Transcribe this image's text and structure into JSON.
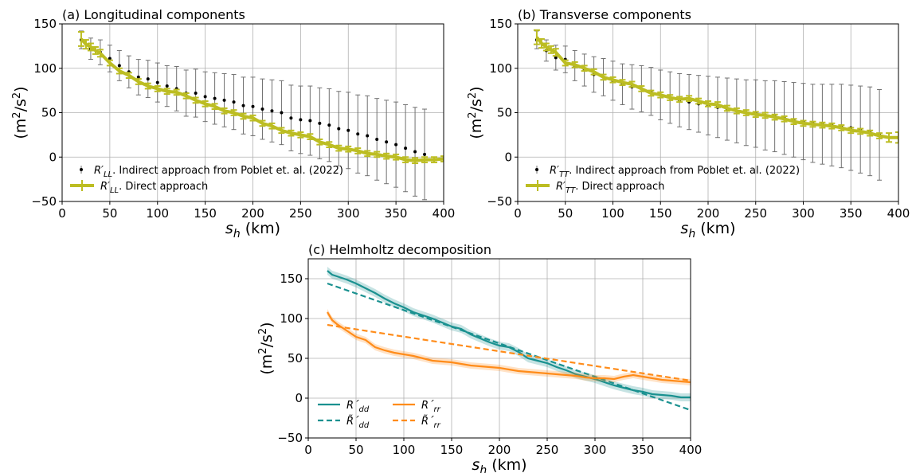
{
  "chart_data": [
    {
      "type": "line",
      "title": "(a) Longitudinal components",
      "xlabel": "s_h (km)",
      "ylabel": "(m²/s²)",
      "xlim": [
        0,
        400
      ],
      "ylim": [
        -50,
        150
      ],
      "xticks": [
        "0",
        "50",
        "100",
        "150",
        "200",
        "250",
        "300",
        "350",
        "400"
      ],
      "yticks": [
        "−50",
        "0",
        "50",
        "100",
        "150"
      ],
      "grid": true,
      "legend_position": "lower-left",
      "legend": [
        "R′LL. Indirect approach from Poblet et. al. (2022)",
        "R′LL. Direct approach"
      ],
      "direct": {
        "x": [
          20,
          25,
          30,
          35,
          40,
          50,
          60,
          70,
          80,
          90,
          100,
          110,
          120,
          130,
          140,
          150,
          160,
          170,
          180,
          190,
          200,
          210,
          220,
          230,
          240,
          250,
          260,
          270,
          280,
          290,
          300,
          310,
          320,
          330,
          340,
          350,
          360,
          370,
          380,
          390,
          400
        ],
        "y": [
          133,
          127,
          124,
          120,
          117,
          106,
          97,
          92,
          85,
          80,
          77,
          74,
          73,
          69,
          64,
          60,
          57,
          52,
          50,
          46,
          44,
          38,
          35,
          30,
          27,
          25,
          23,
          17,
          14,
          10,
          9,
          7,
          4,
          3,
          1,
          0,
          -3,
          -4,
          -3,
          -3,
          -2
        ],
        "err": [
          8,
          5,
          4,
          4,
          4,
          3,
          3,
          3,
          3,
          3,
          3,
          3,
          3,
          3,
          3,
          3,
          3,
          3,
          3,
          3,
          3,
          3,
          3,
          3,
          3,
          3,
          3,
          3,
          3,
          3,
          3,
          3,
          3,
          3,
          3,
          3,
          3,
          3,
          3,
          3,
          3
        ]
      },
      "indirect": {
        "x": [
          20,
          30,
          40,
          50,
          60,
          70,
          80,
          90,
          100,
          110,
          120,
          130,
          140,
          150,
          160,
          170,
          180,
          190,
          200,
          210,
          220,
          230,
          240,
          250,
          260,
          270,
          280,
          290,
          300,
          310,
          320,
          330,
          340,
          350,
          360,
          370,
          380
        ],
        "y": [
          132,
          122,
          118,
          111,
          103,
          96,
          90,
          88,
          84,
          80,
          77,
          72,
          72,
          68,
          66,
          64,
          62,
          58,
          57,
          54,
          52,
          50,
          44,
          42,
          41,
          38,
          36,
          32,
          30,
          26,
          24,
          20,
          17,
          14,
          10,
          6,
          3
        ],
        "err": [
          10,
          12,
          14,
          15,
          17,
          18,
          20,
          21,
          22,
          23,
          25,
          26,
          27,
          28,
          29,
          30,
          31,
          32,
          33,
          34,
          35,
          36,
          37,
          38,
          39,
          40,
          41,
          42,
          43,
          44,
          45,
          46,
          47,
          48,
          49,
          50,
          51
        ]
      }
    },
    {
      "type": "line",
      "title": "(b) Transverse components",
      "xlabel": "s_h (km)",
      "ylabel": "(m²/s²)",
      "xlim": [
        0,
        400
      ],
      "ylim": [
        -50,
        150
      ],
      "xticks": [
        "0",
        "50",
        "100",
        "150",
        "200",
        "250",
        "300",
        "350",
        "400"
      ],
      "yticks": [
        "−50",
        "0",
        "50",
        "100",
        "150"
      ],
      "grid": true,
      "legend_position": "lower-left",
      "legend": [
        "R′TT. Indirect approach from Poblet et. al. (2022)",
        "R′TT. Direct approach"
      ],
      "direct": {
        "x": [
          20,
          25,
          30,
          35,
          40,
          50,
          60,
          70,
          80,
          90,
          100,
          110,
          120,
          130,
          140,
          150,
          160,
          170,
          180,
          190,
          200,
          210,
          220,
          230,
          240,
          250,
          260,
          270,
          280,
          290,
          300,
          310,
          320,
          330,
          340,
          350,
          360,
          370,
          380,
          390,
          400
        ],
        "y": [
          135,
          128,
          124,
          121,
          118,
          106,
          104,
          100,
          96,
          90,
          87,
          84,
          82,
          77,
          72,
          70,
          67,
          65,
          66,
          63,
          60,
          59,
          55,
          52,
          50,
          48,
          47,
          45,
          43,
          40,
          38,
          37,
          36,
          35,
          33,
          30,
          29,
          27,
          24,
          22,
          22
        ],
        "err": [
          8,
          5,
          4,
          4,
          4,
          3,
          3,
          3,
          3,
          3,
          3,
          3,
          3,
          3,
          3,
          3,
          3,
          3,
          3,
          3,
          3,
          3,
          3,
          3,
          3,
          3,
          3,
          3,
          3,
          3,
          3,
          3,
          3,
          3,
          3,
          3,
          3,
          3,
          3,
          5,
          6
        ]
      },
      "indirect": {
        "x": [
          20,
          30,
          40,
          50,
          60,
          70,
          80,
          90,
          100,
          110,
          120,
          130,
          140,
          150,
          160,
          170,
          180,
          190,
          200,
          210,
          220,
          230,
          240,
          250,
          260,
          270,
          280,
          290,
          300,
          310,
          320,
          330,
          340,
          350,
          360,
          370,
          380
        ],
        "y": [
          132,
          120,
          112,
          110,
          103,
          98,
          93,
          90,
          86,
          82,
          79,
          77,
          74,
          70,
          67,
          64,
          62,
          60,
          58,
          56,
          54,
          52,
          50,
          49,
          47,
          46,
          44,
          42,
          40,
          38,
          37,
          36,
          35,
          33,
          31,
          29,
          25
        ],
        "err": [
          10,
          12,
          14,
          15,
          17,
          18,
          20,
          21,
          22,
          23,
          25,
          26,
          27,
          28,
          29,
          30,
          31,
          32,
          33,
          34,
          35,
          36,
          37,
          38,
          39,
          40,
          41,
          42,
          43,
          44,
          45,
          46,
          47,
          48,
          49,
          50,
          51
        ]
      }
    },
    {
      "type": "line",
      "title": "(c) Helmholtz decomposition",
      "xlabel": "s_h (km)",
      "ylabel": "(m²/s²)",
      "xlim": [
        0,
        400
      ],
      "ylim": [
        -50,
        175
      ],
      "xticks": [
        "0",
        "50",
        "100",
        "150",
        "200",
        "250",
        "300",
        "350",
        "400"
      ],
      "yticks": [
        "−50",
        "0",
        "50",
        "100",
        "150"
      ],
      "grid": true,
      "legend_position": "lower-left",
      "colors": {
        "dd": "#1a9190",
        "rr": "#ff8c1a"
      },
      "series": [
        {
          "name": "R´dd",
          "style": "solid",
          "color": "dd",
          "band": 5,
          "x": [
            20,
            25,
            30,
            40,
            50,
            60,
            70,
            80,
            90,
            100,
            110,
            120,
            130,
            140,
            150,
            160,
            170,
            180,
            190,
            200,
            210,
            220,
            230,
            240,
            250,
            260,
            270,
            280,
            290,
            300,
            310,
            320,
            330,
            340,
            350,
            360,
            370,
            380,
            390,
            400
          ],
          "y": [
            160,
            155,
            153,
            149,
            144,
            138,
            132,
            125,
            119,
            114,
            108,
            104,
            100,
            95,
            90,
            87,
            80,
            75,
            70,
            66,
            64,
            58,
            50,
            47,
            44,
            39,
            35,
            30,
            27,
            24,
            20,
            16,
            13,
            10,
            8,
            5,
            4,
            3,
            1,
            1
          ]
        },
        {
          "name": "R̃´dd",
          "style": "dashed",
          "color": "dd",
          "x": [
            20,
            400
          ],
          "y": [
            144,
            -15
          ]
        },
        {
          "name": "R´rr",
          "style": "solid",
          "color": "rr",
          "band": 4,
          "x": [
            20,
            25,
            30,
            40,
            50,
            60,
            70,
            80,
            90,
            100,
            110,
            120,
            130,
            140,
            150,
            160,
            170,
            180,
            190,
            200,
            210,
            220,
            230,
            240,
            250,
            260,
            270,
            280,
            290,
            300,
            310,
            320,
            330,
            340,
            350,
            360,
            370,
            380,
            390,
            400
          ],
          "y": [
            108,
            98,
            93,
            85,
            77,
            73,
            64,
            60,
            57,
            55,
            53,
            50,
            47,
            46,
            45,
            43,
            41,
            40,
            39,
            38,
            36,
            34,
            33,
            32,
            31,
            30,
            29,
            28,
            26,
            25,
            25,
            24,
            27,
            29,
            27,
            25,
            23,
            22,
            21,
            20
          ]
        },
        {
          "name": "R̃´rr",
          "style": "dashed",
          "color": "rr",
          "x": [
            20,
            400
          ],
          "y": [
            92,
            22
          ]
        }
      ]
    }
  ]
}
